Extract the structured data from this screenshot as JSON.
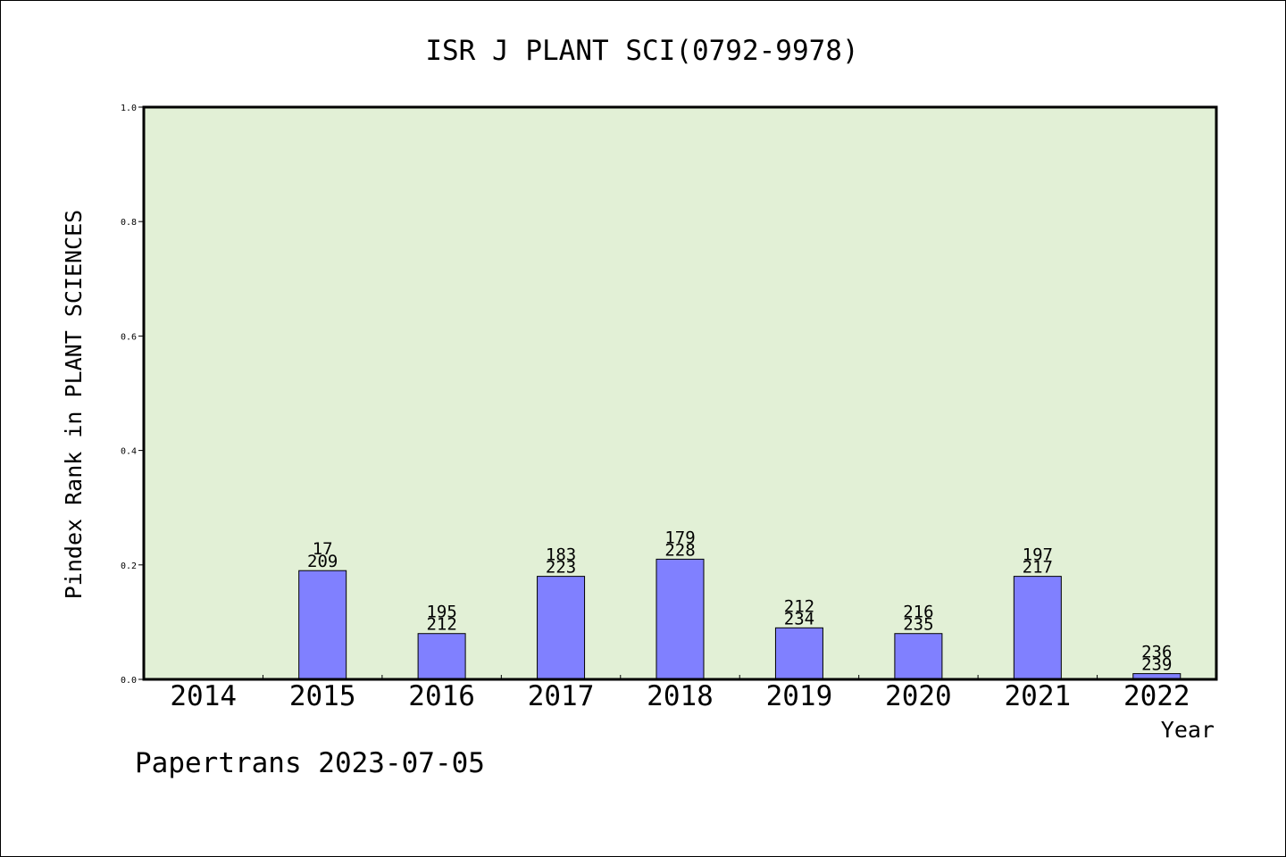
{
  "chart_data": {
    "type": "bar",
    "title": "ISR J PLANT SCI(0792-9978)",
    "xlabel": "Year",
    "ylabel": "Pindex Rank in PLANT SCIENCES",
    "ylim": [
      0,
      1.0
    ],
    "yticks": [
      "0.0",
      "0.2",
      "0.4",
      "0.6",
      "0.8",
      "1.0"
    ],
    "categories": [
      "2014",
      "2015",
      "2016",
      "2017",
      "2018",
      "2019",
      "2020",
      "2021",
      "2022"
    ],
    "values": [
      null,
      0.19,
      0.08,
      0.18,
      0.21,
      0.09,
      0.08,
      0.18,
      0.01
    ],
    "labels_top": [
      "",
      "17",
      "195",
      "183",
      "179",
      "212",
      "216",
      "197",
      "236"
    ],
    "labels_bottom": [
      "",
      "209",
      "212",
      "223",
      "228",
      "234",
      "235",
      "217",
      "239"
    ],
    "grid": false,
    "colors": {
      "plot_background": "#e2f0d6",
      "bar_fill": "#8080ff",
      "bar_stroke": "#000000"
    }
  },
  "footer": "Papertrans 2023-07-05"
}
